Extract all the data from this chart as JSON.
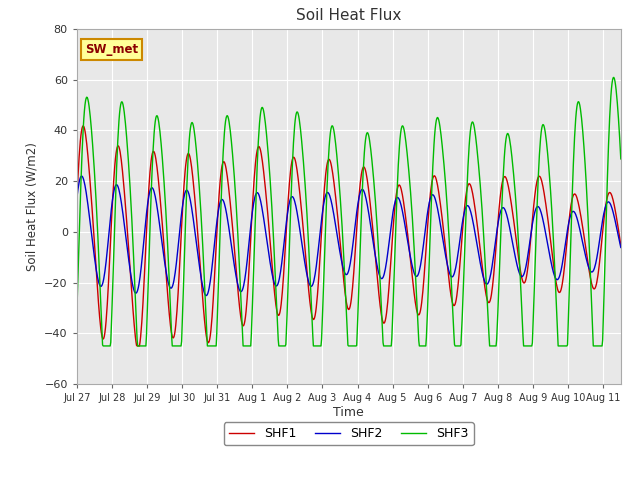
{
  "title": "Soil Heat Flux",
  "xlabel": "Time",
  "ylabel": "Soil Heat Flux (W/m2)",
  "ylim": [
    -60,
    80
  ],
  "yticks": [
    -60,
    -40,
    -20,
    0,
    20,
    40,
    60,
    80
  ],
  "annotation_text": "SW_met",
  "legend_labels": [
    "SHF1",
    "SHF2",
    "SHF3"
  ],
  "line_colors": [
    "#cc0000",
    "#0000cc",
    "#00bb00"
  ],
  "bg_color": "#e8e8e8",
  "fig_bg": "#ffffff",
  "n_days": 15.5,
  "n_points": 930,
  "xtick_labels": [
    "Jul 27",
    "Jul 28",
    "Jul 29",
    "Jul 30",
    "Jul 31",
    "Aug 1",
    "Aug 2",
    "Aug 3",
    "Aug 4",
    "Aug 5",
    "Aug 6",
    "Aug 7",
    "Aug 8",
    "Aug 9",
    "Aug 10",
    "Aug 11"
  ],
  "grid_color": "#ffffff",
  "tick_color": "#666666",
  "spine_color": "#aaaaaa"
}
